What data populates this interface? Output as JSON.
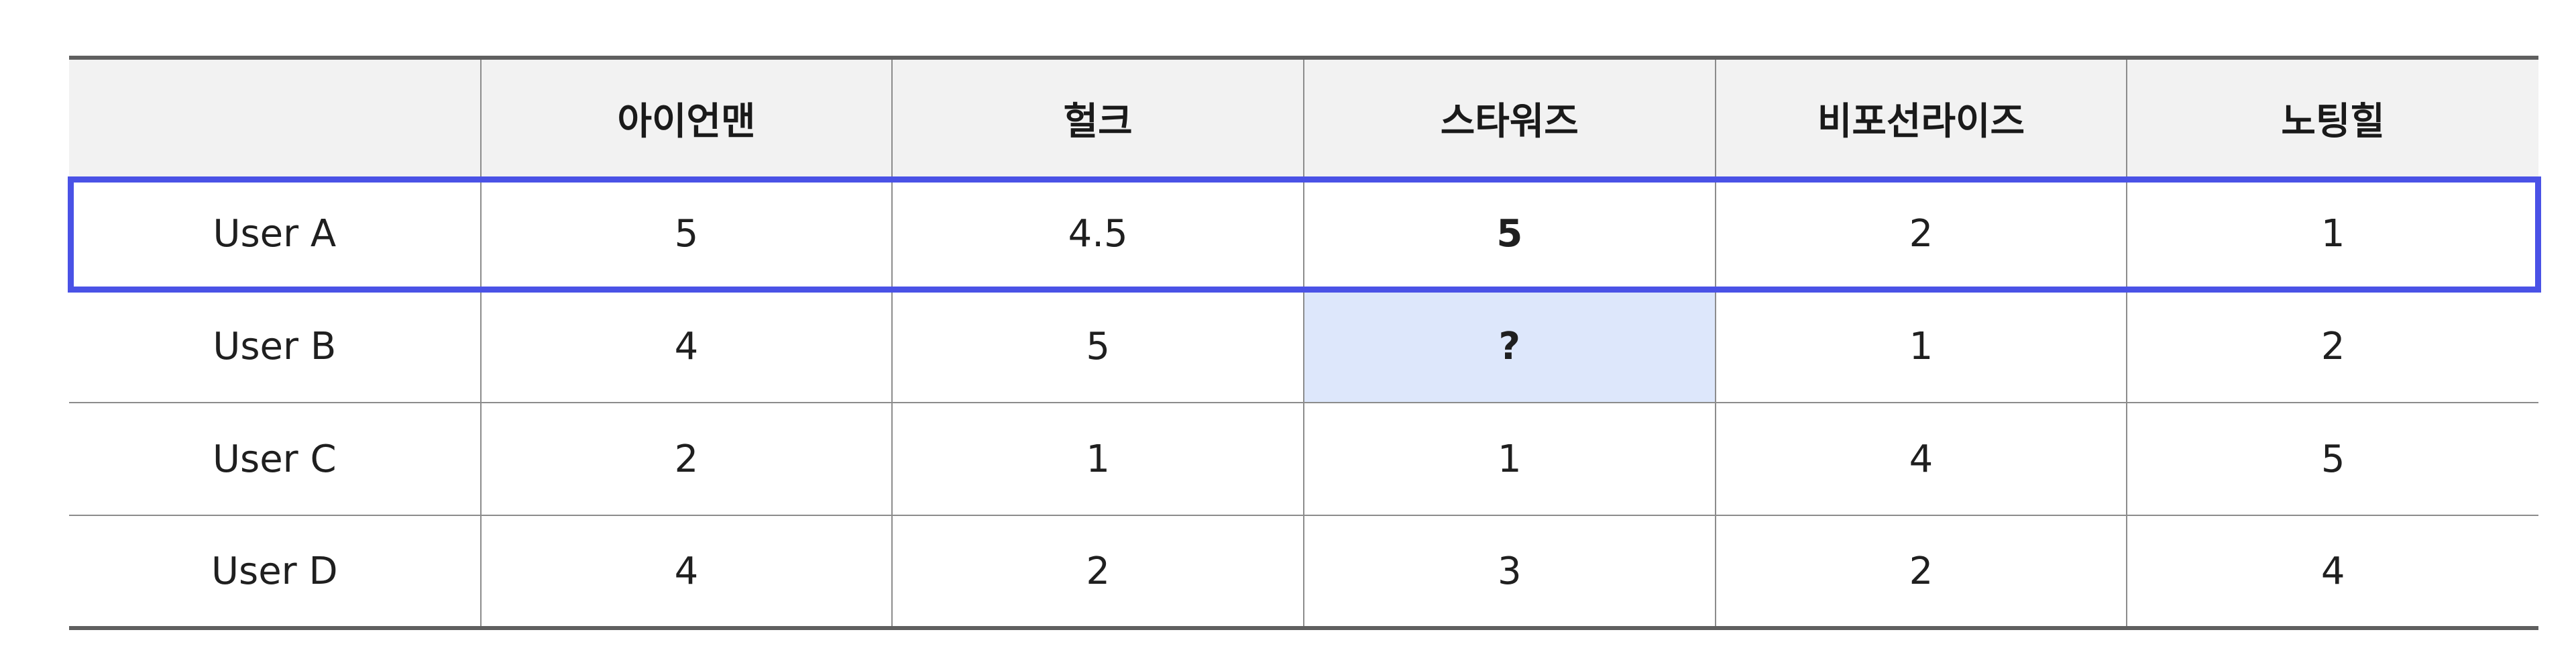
{
  "table": {
    "headers": [
      "",
      "아이언맨",
      "헐크",
      "스타워즈",
      "비포선라이즈",
      "노팅힐"
    ],
    "rows": [
      {
        "user": "User A",
        "ratings": [
          "5",
          "4.5",
          "5",
          "2",
          "1"
        ]
      },
      {
        "user": "User B",
        "ratings": [
          "4",
          "5",
          "?",
          "1",
          "2"
        ]
      },
      {
        "user": "User C",
        "ratings": [
          "2",
          "1",
          "1",
          "4",
          "5"
        ]
      },
      {
        "user": "User D",
        "ratings": [
          "4",
          "2",
          "3",
          "2",
          "4"
        ]
      }
    ]
  },
  "highlight": {
    "row": "User A",
    "row_outline_color": "#4a52e6",
    "query_cell_color": "#dde7fb"
  }
}
